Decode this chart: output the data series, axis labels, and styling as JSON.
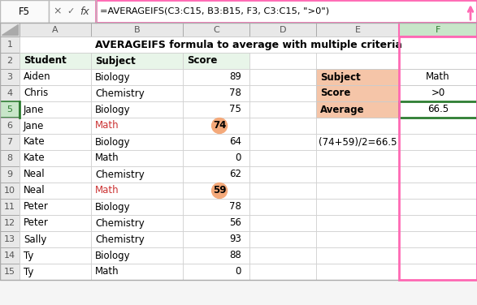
{
  "title": "AVERAGEIFS formula to average with multiple criteria",
  "formula_bar_cell": "F5",
  "formula_bar_text": "=AVERAGEIFS(C3:C15, B3:B15, F3, C3:C15, \">0\")",
  "col_headers": [
    "A",
    "B",
    "C",
    "D",
    "E",
    "F"
  ],
  "main_headers": [
    "Student",
    "Subject",
    "Score"
  ],
  "data_rows": [
    [
      "Aiden",
      "Biology",
      "89"
    ],
    [
      "Chris",
      "Chemistry",
      "78"
    ],
    [
      "Jane",
      "Biology",
      "75"
    ],
    [
      "Jane",
      "Math",
      "74"
    ],
    [
      "Kate",
      "Biology",
      "64"
    ],
    [
      "Kate",
      "Math",
      "0"
    ],
    [
      "Neal",
      "Chemistry",
      "62"
    ],
    [
      "Neal",
      "Math",
      "59"
    ],
    [
      "Peter",
      "Biology",
      "78"
    ],
    [
      "Peter",
      "Chemistry",
      "56"
    ],
    [
      "Sally",
      "Chemistry",
      "93"
    ],
    [
      "Ty",
      "Biology",
      "88"
    ],
    [
      "Ty",
      "Math",
      "0"
    ]
  ],
  "highlighted_rows_idx": [
    3,
    7
  ],
  "highlight_circle_color": "#F4A97A",
  "side_labels": [
    "Subject",
    "Score",
    "Average"
  ],
  "side_values": [
    "Math",
    ">0",
    "66.5"
  ],
  "side_label_bg": "#F5C5A8",
  "side_avg_border": "#2E7D32",
  "annotation": "(74+59)/2=66.5",
  "header_bg": "#E8F5E9",
  "formula_bar_border": "#FF69B4",
  "col_F_highlight_bg": "#C8E6C9",
  "col_F_border": "#FF69B4",
  "arrow_color": "#FF69B4",
  "grid_color": "#CCCCCC",
  "row_num_bg": "#F0F0F0",
  "col_header_bg": "#F0F0F0",
  "fig_bg": "#F5F5F5",
  "cell_bg": "#FFFFFF",
  "row5_left_border": "#2E7D32"
}
